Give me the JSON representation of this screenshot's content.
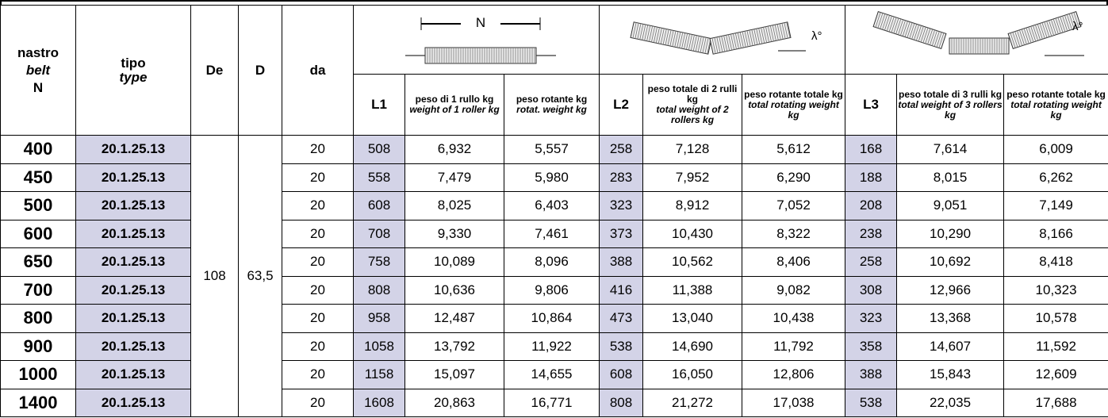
{
  "header": {
    "belt": [
      "nastro",
      "belt",
      "N"
    ],
    "type": [
      "tipo",
      "type"
    ],
    "De": "De",
    "D": "D",
    "da": "da",
    "groups": [
      {
        "diagram_label": "N",
        "columns": [
          {
            "label": "L1"
          },
          {
            "it": "peso di 1 rullo kg",
            "en": "weight of 1 roller kg"
          },
          {
            "it": "peso rotante kg",
            "en": "rotat. weight kg"
          }
        ]
      },
      {
        "diagram_label": "λ°",
        "columns": [
          {
            "label": "L2"
          },
          {
            "it": "peso totale di 2 rulli kg",
            "en": "total weight of 2 rollers kg"
          },
          {
            "it": "peso rotante totale kg",
            "en": "total rotating weight kg"
          }
        ]
      },
      {
        "diagram_label": "λ°",
        "columns": [
          {
            "label": "L3"
          },
          {
            "it": "peso totale di 3 rulli kg",
            "en": "total weight of 3 rollers kg"
          },
          {
            "it": "peso rotante totale kg",
            "en": "total rotating weight kg"
          }
        ]
      }
    ]
  },
  "merged": {
    "De": "108",
    "D": "63,5"
  },
  "table": {
    "rows": [
      [
        "400",
        "20.1.25.13",
        "20",
        "508",
        "6,932",
        "5,557",
        "258",
        "7,128",
        "5,612",
        "168",
        "7,614",
        "6,009"
      ],
      [
        "450",
        "20.1.25.13",
        "20",
        "558",
        "7,479",
        "5,980",
        "283",
        "7,952",
        "6,290",
        "188",
        "8,015",
        "6,262"
      ],
      [
        "500",
        "20.1.25.13",
        "20",
        "608",
        "8,025",
        "6,403",
        "323",
        "8,912",
        "7,052",
        "208",
        "9,051",
        "7,149"
      ],
      [
        "600",
        "20.1.25.13",
        "20",
        "708",
        "9,330",
        "7,461",
        "373",
        "10,430",
        "8,322",
        "238",
        "10,290",
        "8,166"
      ],
      [
        "650",
        "20.1.25.13",
        "20",
        "758",
        "10,089",
        "8,096",
        "388",
        "10,562",
        "8,406",
        "258",
        "10,692",
        "8,418"
      ],
      [
        "700",
        "20.1.25.13",
        "20",
        "808",
        "10,636",
        "9,806",
        "416",
        "11,388",
        "9,082",
        "308",
        "12,966",
        "10,323"
      ],
      [
        "800",
        "20.1.25.13",
        "20",
        "958",
        "12,487",
        "10,864",
        "473",
        "13,040",
        "10,438",
        "323",
        "13,368",
        "10,578"
      ],
      [
        "900",
        "20.1.25.13",
        "20",
        "1058",
        "13,792",
        "11,922",
        "538",
        "14,690",
        "11,792",
        "358",
        "14,607",
        "11,592"
      ],
      [
        "1000",
        "20.1.25.13",
        "20",
        "1158",
        "15,097",
        "14,655",
        "608",
        "16,050",
        "12,806",
        "388",
        "15,843",
        "12,609"
      ],
      [
        "1400",
        "20.1.25.13",
        "20",
        "1608",
        "20,863",
        "16,771",
        "808",
        "21,272",
        "17,038",
        "538",
        "22,035",
        "17,688"
      ]
    ]
  }
}
